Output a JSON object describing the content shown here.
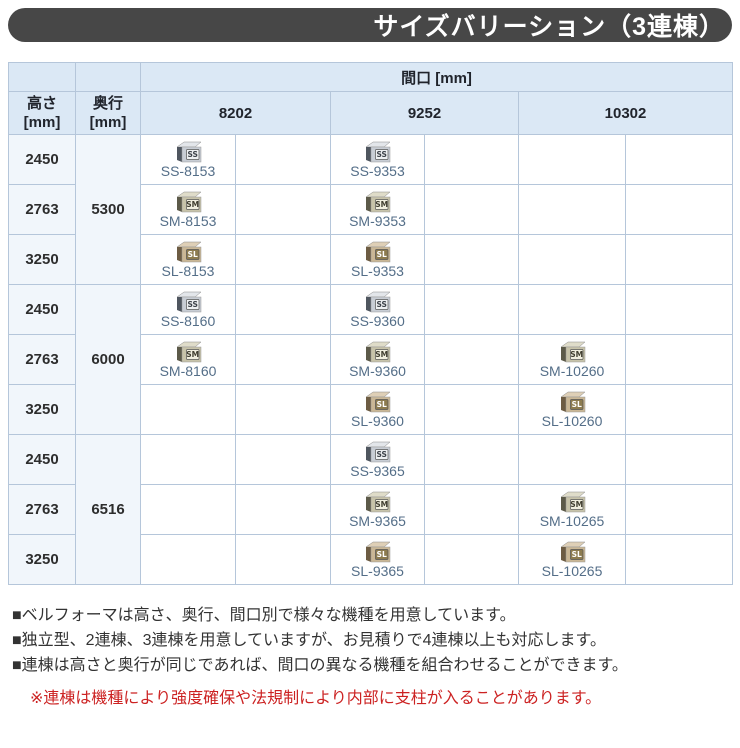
{
  "title": "サイズバリーション（3連棟）",
  "table": {
    "header": {
      "maguchi_label": "間口 [mm]",
      "height_label": "高さ",
      "depth_label": "奥行",
      "unit_label": "[mm]",
      "spans": [
        "8202",
        "9252",
        "10302"
      ]
    },
    "bands": [
      {
        "depth": "5300",
        "rows": [
          {
            "height": "2450",
            "cells": [
              {
                "type": "SS",
                "model": "SS-8153"
              },
              {
                "type": "SS",
                "model": "SS-9353"
              },
              null
            ]
          },
          {
            "height": "2763",
            "cells": [
              {
                "type": "SM",
                "model": "SM-8153"
              },
              {
                "type": "SM",
                "model": "SM-9353"
              },
              null
            ]
          },
          {
            "height": "3250",
            "cells": [
              {
                "type": "SL",
                "model": "SL-8153"
              },
              {
                "type": "SL",
                "model": "SL-9353"
              },
              null
            ]
          }
        ]
      },
      {
        "depth": "6000",
        "rows": [
          {
            "height": "2450",
            "cells": [
              {
                "type": "SS",
                "model": "SS-8160"
              },
              {
                "type": "SS",
                "model": "SS-9360"
              },
              null
            ]
          },
          {
            "height": "2763",
            "cells": [
              {
                "type": "SM",
                "model": "SM-8160"
              },
              {
                "type": "SM",
                "model": "SM-9360"
              },
              {
                "type": "SM",
                "model": "SM-10260"
              }
            ]
          },
          {
            "height": "3250",
            "cells": [
              null,
              {
                "type": "SL",
                "model": "SL-9360"
              },
              {
                "type": "SL",
                "model": "SL-10260"
              }
            ]
          }
        ]
      },
      {
        "depth": "6516",
        "rows": [
          {
            "height": "2450",
            "cells": [
              null,
              {
                "type": "SS",
                "model": "SS-9365"
              },
              null
            ]
          },
          {
            "height": "2763",
            "cells": [
              null,
              {
                "type": "SM",
                "model": "SM-9365"
              },
              {
                "type": "SM",
                "model": "SM-10265"
              }
            ]
          },
          {
            "height": "3250",
            "cells": [
              null,
              {
                "type": "SL",
                "model": "SL-9365"
              },
              {
                "type": "SL",
                "model": "SL-10265"
              }
            ]
          }
        ]
      }
    ]
  },
  "notes": [
    {
      "text": "■ベルフォーマは高さ、奥行、間口別で様々な機種を用意しています。"
    },
    {
      "text": "■独立型、2連棟、3連棟を用意していますが、お見積りで4連棟以上も対応します。"
    },
    {
      "text": "■連棟は高さと奥行が同じであれば、間口の異なる機種を組合わせることができます。"
    }
  ],
  "warning": {
    "text": "※連棟は機種により強度確保や法規制により内部に支柱が入ることがあります。"
  },
  "icon_styles": {
    "SS": {
      "top": "#e3e6ea",
      "left": "#4f565f",
      "front": "#c8cdd4",
      "badge_bg": "#eef0f2",
      "badge_text": "#3a3f46"
    },
    "SM": {
      "top": "#dfdcc9",
      "left": "#5c5a49",
      "front": "#c7c3a9",
      "badge_bg": "#f1efdf",
      "badge_text": "#403e30"
    },
    "SL": {
      "top": "#decfb6",
      "left": "#6d5c43",
      "front": "#cab795",
      "badge_bg": "#8d7c50",
      "badge_text": "#ffffff"
    }
  },
  "colors": {
    "title_bar_bg": "#474747",
    "title_text": "#ffffff",
    "header_bg": "#dbe8f5",
    "side_col_bg": "#f1f6fb",
    "grid_border": "#b5c6da",
    "header_text": "#20242c",
    "value_text": "#2d2d2d",
    "model_text": "#546e88",
    "note_text": "#333333",
    "warning_text": "#cc2222"
  }
}
